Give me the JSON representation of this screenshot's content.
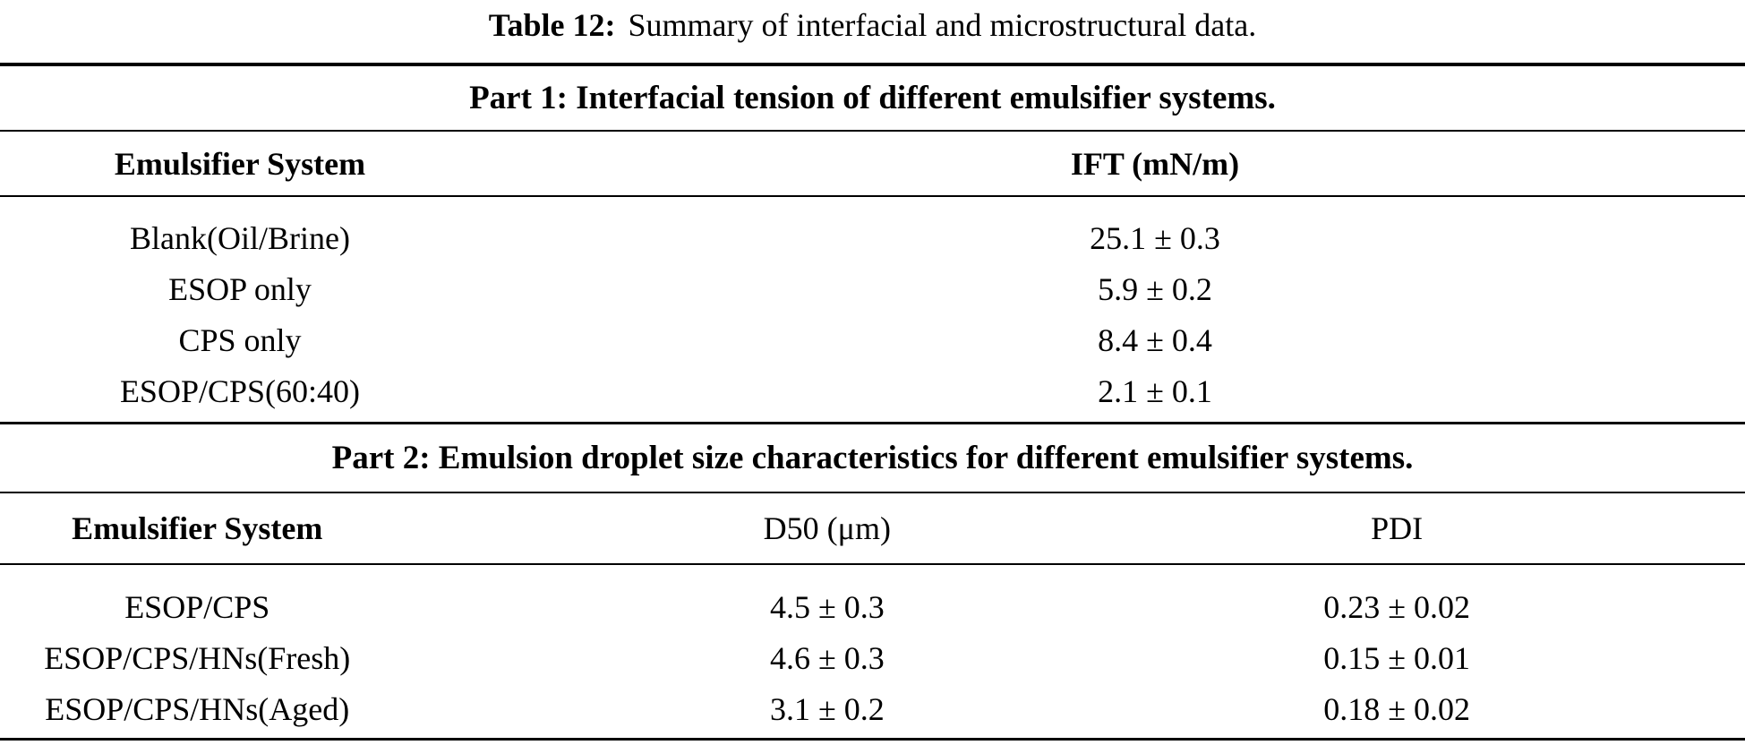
{
  "caption": {
    "label": "Table 12:",
    "text": "Summary of interfacial and microstructural data."
  },
  "part1": {
    "title": "Part 1: Interfacial tension of different emulsifier systems.",
    "columns": [
      "Emulsifier System",
      "IFT (mN/m)"
    ],
    "rows": [
      {
        "system": "Blank(Oil/Brine)",
        "ift": "25.1 ± 0.3"
      },
      {
        "system": "ESOP only",
        "ift": "5.9 ± 0.2"
      },
      {
        "system": "CPS only",
        "ift": "8.4 ± 0.4"
      },
      {
        "system": "ESOP/CPS(60:40)",
        "ift": "2.1 ± 0.1"
      }
    ]
  },
  "part2": {
    "title": "Part 2: Emulsion droplet size characteristics for different emulsifier systems.",
    "columns": [
      "Emulsifier System",
      "D50 (μm)",
      "PDI"
    ],
    "rows": [
      {
        "system": "ESOP/CPS",
        "d50": "4.5 ± 0.3",
        "pdi": "0.23 ± 0.02"
      },
      {
        "system": "ESOP/CPS/HNs(Fresh)",
        "d50": "4.6 ± 0.3",
        "pdi": "0.15 ± 0.01"
      },
      {
        "system": "ESOP/CPS/HNs(Aged)",
        "d50": "3.1 ± 0.2",
        "pdi": "0.18 ± 0.02"
      }
    ]
  }
}
